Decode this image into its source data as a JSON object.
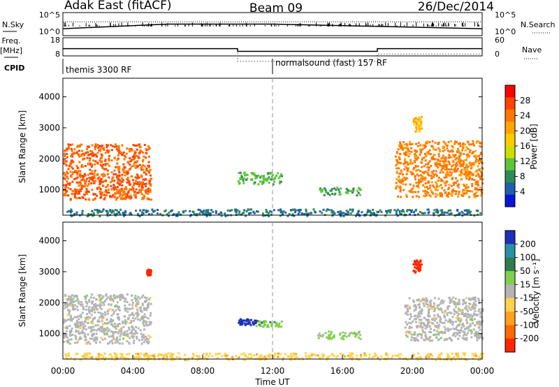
{
  "header": {
    "station": "Adak East (fitACF)",
    "beam": "Beam 09",
    "date": "26/Dec/2014"
  },
  "left_labels": {
    "nsky": "N.Sky",
    "freq_line1": "Freq.",
    "freq_line2": "[MHz]",
    "cpid": "CPID"
  },
  "right_labels": {
    "nsearch": "N.Search",
    "nave": "Nave"
  },
  "nsky_ticks": [
    "10^5",
    "10^0"
  ],
  "nsearch_ticks": [
    "10^5",
    "10^0"
  ],
  "freq_ticks": [
    "18",
    "8"
  ],
  "nave_ticks": [
    "60",
    "0"
  ],
  "cpid": {
    "segment1": "themis 3300 RF",
    "segment2": "normalsound (fast) 157 RF"
  },
  "colorbars": {
    "power": {
      "label": "Power [dB]",
      "ticks": [
        "28",
        "24",
        "20",
        "16",
        "12",
        "8",
        "4"
      ],
      "colors": [
        "#ff0000",
        "#ff4400",
        "#ff7700",
        "#ffa500",
        "#ffcc00",
        "#cce000",
        "#5fc43a",
        "#2e8b57",
        "#1f5fae",
        "#0a14d8"
      ]
    },
    "velocity": {
      "label": "Velocity [m s⁻¹]",
      "ticks": [
        "200",
        "100",
        "50",
        "15",
        "-15",
        "-50",
        "-100",
        "-200"
      ],
      "colors": [
        "#1e2fb8",
        "#2a8fa8",
        "#2e7d4a",
        "#7fd04a",
        "#b4b4b4",
        "#ffd24a",
        "#ffa020",
        "#ff6a00",
        "#ff2600"
      ]
    }
  },
  "chart_data": [
    {
      "type": "line",
      "title": "",
      "xlabel": "",
      "x_range": [
        "00:00",
        "24:00"
      ],
      "series": [
        {
          "name": "N.Sky",
          "x": [
            "00:00",
            "06:00",
            "12:00",
            "18:00",
            "24:00"
          ],
          "values": [
            1.5,
            2.5,
            2.5,
            2.0,
            1.5
          ]
        },
        {
          "name": "N.Search",
          "x": [
            "00:00",
            "06:00",
            "12:00",
            "18:00",
            "24:00"
          ],
          "values": [
            3,
            3,
            3,
            3,
            3
          ]
        }
      ]
    },
    {
      "type": "line",
      "title": "",
      "x_range": [
        "00:00",
        "24:00"
      ],
      "series": [
        {
          "name": "Freq.",
          "x": [
            "00:00",
            "10:00",
            "10:00",
            "18:00",
            "18:00",
            "24:00"
          ],
          "values": [
            12,
            12,
            10.5,
            10.5,
            12,
            12
          ]
        },
        {
          "name": "Nave",
          "x": [
            "00:00",
            "10:00",
            "10:00",
            "18:00",
            "18:00",
            "24:00"
          ],
          "values": [
            12,
            12,
            5,
            5,
            9,
            9
          ]
        }
      ]
    },
    {
      "type": "heatmap",
      "title": "",
      "xlabel": "",
      "ylabel": "Slant Range [km]",
      "x_range": [
        "00:00",
        "24:00"
      ],
      "ylim": [
        180,
        4600
      ],
      "y_ticks": [
        1000,
        2000,
        3000,
        4000
      ],
      "value_label": "Power [dB]",
      "value_range": [
        0,
        30
      ],
      "regions": [
        {
          "t0": "00:00",
          "t1": "05:00",
          "r0": 700,
          "r1": 2500,
          "value": 24
        },
        {
          "t0": "10:00",
          "t1": "12:30",
          "r0": 1200,
          "r1": 1600,
          "value": 10
        },
        {
          "t0": "14:30",
          "t1": "17:00",
          "r0": 850,
          "r1": 1100,
          "value": 9
        },
        {
          "t0": "19:00",
          "t1": "24:00",
          "r0": 800,
          "r1": 2600,
          "value": 22
        },
        {
          "t0": "20:00",
          "t1": "20:30",
          "r0": 2900,
          "r1": 3400,
          "value": 18
        },
        {
          "t0": "00:00",
          "t1": "24:00",
          "r0": 180,
          "r1": 400,
          "value": 6
        }
      ]
    },
    {
      "type": "heatmap",
      "title": "",
      "xlabel": "Time UT",
      "ylabel": "Slant Range [km]",
      "x_ticks": [
        "00:00",
        "04:00",
        "08:00",
        "12:00",
        "16:00",
        "20:00",
        "00:00"
      ],
      "ylim": [
        180,
        4600
      ],
      "y_ticks": [
        1000,
        2000,
        3000,
        4000
      ],
      "value_label": "Velocity [m s⁻¹]",
      "value_range": [
        -200,
        200
      ],
      "regions": [
        {
          "t0": "00:00",
          "t1": "05:00",
          "r0": 700,
          "r1": 2300,
          "value": 0
        },
        {
          "t0": "04:45",
          "t1": "05:00",
          "r0": 2900,
          "r1": 3100,
          "value": -200
        },
        {
          "t0": "10:00",
          "t1": "11:00",
          "r0": 1300,
          "r1": 1500,
          "value": 200
        },
        {
          "t0": "11:00",
          "t1": "12:30",
          "r0": 1250,
          "r1": 1450,
          "value": 50
        },
        {
          "t0": "14:30",
          "t1": "17:00",
          "r0": 850,
          "r1": 1100,
          "value": 30
        },
        {
          "t0": "19:30",
          "t1": "24:00",
          "r0": 800,
          "r1": 2200,
          "value": 0
        },
        {
          "t0": "20:00",
          "t1": "20:30",
          "r0": 3000,
          "r1": 3400,
          "value": -200
        },
        {
          "t0": "00:00",
          "t1": "24:00",
          "r0": 180,
          "r1": 400,
          "value": -50
        }
      ]
    }
  ]
}
